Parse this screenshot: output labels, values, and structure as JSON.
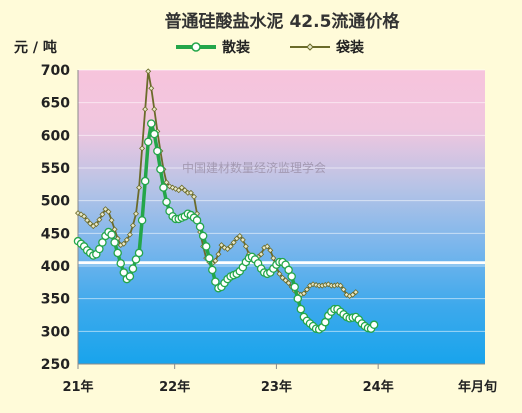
{
  "chart_data": {
    "type": "line",
    "title": "普通硅酸盐水泥 42.5流通价格",
    "ylabel": "元 / 吨",
    "xlabel": "年月旬",
    "ylim": [
      250,
      700
    ],
    "yticks": [
      250,
      300,
      350,
      400,
      450,
      500,
      550,
      600,
      650,
      700
    ],
    "xlim": [
      0,
      40
    ],
    "xticks": [
      {
        "label": "21年",
        "x": 0
      },
      {
        "label": "22年",
        "x": 9.5
      },
      {
        "label": "23年",
        "x": 19.5
      },
      {
        "label": "24年",
        "x": 29.5
      }
    ],
    "legend_position": "top",
    "watermark": "中国建材数量经济监理学会",
    "reference_line": {
      "y": 405,
      "color": "#ffffff"
    },
    "background_gradient": [
      "#f7c4dc",
      "#f0c6df",
      "#b6c3e6",
      "#7ab6ec",
      "#3ea9ec",
      "#18a4ec"
    ],
    "series": [
      {
        "name": "散装",
        "color": "#24a64a",
        "marker": "circle",
        "marker_color": "#ffffff",
        "points": [
          [
            0.0,
            438
          ],
          [
            0.3,
            434
          ],
          [
            0.6,
            430
          ],
          [
            0.9,
            424
          ],
          [
            1.2,
            420
          ],
          [
            1.5,
            416
          ],
          [
            1.8,
            418
          ],
          [
            2.1,
            426
          ],
          [
            2.4,
            436
          ],
          [
            2.7,
            446
          ],
          [
            3.0,
            452
          ],
          [
            3.3,
            448
          ],
          [
            3.6,
            436
          ],
          [
            3.9,
            420
          ],
          [
            4.2,
            404
          ],
          [
            4.5,
            390
          ],
          [
            4.8,
            380
          ],
          [
            5.1,
            384
          ],
          [
            5.4,
            396
          ],
          [
            5.7,
            410
          ],
          [
            6.0,
            420
          ],
          [
            6.3,
            470
          ],
          [
            6.6,
            530
          ],
          [
            6.9,
            590
          ],
          [
            7.2,
            618
          ],
          [
            7.5,
            602
          ],
          [
            7.8,
            576
          ],
          [
            8.1,
            548
          ],
          [
            8.4,
            520
          ],
          [
            8.7,
            498
          ],
          [
            9.0,
            484
          ],
          [
            9.3,
            476
          ],
          [
            9.6,
            472
          ],
          [
            9.9,
            472
          ],
          [
            10.2,
            474
          ],
          [
            10.5,
            476
          ],
          [
            10.8,
            480
          ],
          [
            11.1,
            478
          ],
          [
            11.4,
            474
          ],
          [
            11.7,
            470
          ],
          [
            12.0,
            460
          ],
          [
            12.3,
            446
          ],
          [
            12.6,
            430
          ],
          [
            12.9,
            412
          ],
          [
            13.2,
            394
          ],
          [
            13.5,
            376
          ],
          [
            13.8,
            366
          ],
          [
            14.1,
            368
          ],
          [
            14.4,
            374
          ],
          [
            14.7,
            380
          ],
          [
            15.0,
            384
          ],
          [
            15.3,
            386
          ],
          [
            15.6,
            388
          ],
          [
            15.9,
            392
          ],
          [
            16.2,
            398
          ],
          [
            16.5,
            406
          ],
          [
            16.8,
            412
          ],
          [
            17.1,
            414
          ],
          [
            17.4,
            410
          ],
          [
            17.7,
            404
          ],
          [
            18.0,
            396
          ],
          [
            18.3,
            390
          ],
          [
            18.6,
            388
          ],
          [
            18.9,
            390
          ],
          [
            19.2,
            396
          ],
          [
            19.5,
            402
          ],
          [
            19.8,
            406
          ],
          [
            20.1,
            406
          ],
          [
            20.4,
            402
          ],
          [
            20.7,
            394
          ],
          [
            21.0,
            384
          ],
          [
            21.3,
            368
          ],
          [
            21.6,
            350
          ],
          [
            21.9,
            334
          ],
          [
            22.2,
            322
          ],
          [
            22.5,
            316
          ],
          [
            22.8,
            312
          ],
          [
            23.1,
            308
          ],
          [
            23.4,
            304
          ],
          [
            23.7,
            303
          ],
          [
            24.0,
            306
          ],
          [
            24.3,
            314
          ],
          [
            24.6,
            324
          ],
          [
            24.9,
            330
          ],
          [
            25.2,
            334
          ],
          [
            25.5,
            334
          ],
          [
            25.8,
            330
          ],
          [
            26.1,
            326
          ],
          [
            26.4,
            322
          ],
          [
            26.7,
            320
          ],
          [
            27.0,
            321
          ],
          [
            27.3,
            322
          ],
          [
            27.6,
            318
          ],
          [
            27.9,
            312
          ],
          [
            28.2,
            308
          ],
          [
            28.5,
            305
          ],
          [
            28.8,
            304
          ],
          [
            29.1,
            310
          ]
        ]
      },
      {
        "name": "袋装",
        "color": "#6b6b2a",
        "marker": "diamond",
        "marker_color": "#e8e8c8",
        "points": [
          [
            0.0,
            481
          ],
          [
            0.3,
            479
          ],
          [
            0.6,
            476
          ],
          [
            0.9,
            470
          ],
          [
            1.2,
            465
          ],
          [
            1.5,
            461
          ],
          [
            1.8,
            464
          ],
          [
            2.1,
            471
          ],
          [
            2.4,
            479
          ],
          [
            2.7,
            487
          ],
          [
            3.0,
            483
          ],
          [
            3.3,
            470
          ],
          [
            3.6,
            456
          ],
          [
            3.9,
            442
          ],
          [
            4.2,
            432
          ],
          [
            4.5,
            434
          ],
          [
            4.8,
            440
          ],
          [
            5.1,
            448
          ],
          [
            5.4,
            462
          ],
          [
            5.7,
            480
          ],
          [
            6.0,
            520
          ],
          [
            6.3,
            580
          ],
          [
            6.6,
            640
          ],
          [
            6.9,
            698
          ],
          [
            7.2,
            672
          ],
          [
            7.5,
            640
          ],
          [
            7.8,
            606
          ],
          [
            8.1,
            576
          ],
          [
            8.4,
            548
          ],
          [
            8.7,
            528
          ],
          [
            9.0,
            522
          ],
          [
            9.3,
            520
          ],
          [
            9.6,
            518
          ],
          [
            9.9,
            516
          ],
          [
            10.2,
            520
          ],
          [
            10.5,
            516
          ],
          [
            10.8,
            512
          ],
          [
            11.1,
            512
          ],
          [
            11.4,
            506
          ],
          [
            11.7,
            480
          ],
          [
            12.0,
            452
          ],
          [
            12.3,
            430
          ],
          [
            12.6,
            412
          ],
          [
            12.9,
            406
          ],
          [
            13.2,
            404
          ],
          [
            13.5,
            408
          ],
          [
            13.8,
            418
          ],
          [
            14.1,
            432
          ],
          [
            14.4,
            428
          ],
          [
            14.7,
            426
          ],
          [
            15.0,
            430
          ],
          [
            15.3,
            436
          ],
          [
            15.6,
            442
          ],
          [
            15.9,
            446
          ],
          [
            16.2,
            440
          ],
          [
            16.5,
            430
          ],
          [
            16.8,
            418
          ],
          [
            17.1,
            410
          ],
          [
            17.4,
            410
          ],
          [
            17.7,
            414
          ],
          [
            18.0,
            418
          ],
          [
            18.3,
            428
          ],
          [
            18.6,
            430
          ],
          [
            18.9,
            424
          ],
          [
            19.2,
            412
          ],
          [
            19.5,
            398
          ],
          [
            19.8,
            388
          ],
          [
            20.1,
            382
          ],
          [
            20.4,
            378
          ],
          [
            20.7,
            374
          ],
          [
            21.0,
            368
          ],
          [
            21.3,
            362
          ],
          [
            21.6,
            358
          ],
          [
            21.9,
            356
          ],
          [
            22.2,
            358
          ],
          [
            22.5,
            364
          ],
          [
            22.8,
            370
          ],
          [
            23.1,
            372
          ],
          [
            23.4,
            371
          ],
          [
            23.7,
            370
          ],
          [
            24.0,
            370
          ],
          [
            24.3,
            371
          ],
          [
            24.6,
            372
          ],
          [
            24.9,
            370
          ],
          [
            25.2,
            370
          ],
          [
            25.5,
            371
          ],
          [
            25.8,
            370
          ],
          [
            26.1,
            364
          ],
          [
            26.4,
            356
          ],
          [
            26.7,
            354
          ],
          [
            27.0,
            356
          ],
          [
            27.3,
            360
          ]
        ]
      }
    ]
  }
}
